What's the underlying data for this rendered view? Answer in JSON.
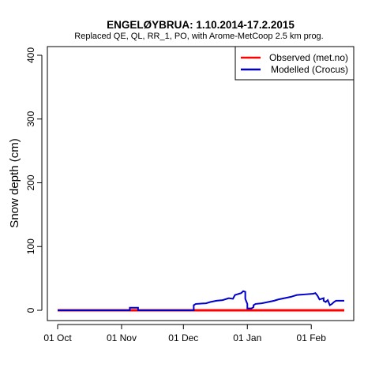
{
  "chart_data": {
    "type": "line",
    "title": "ENGELØYBRUA: 1.10.2014-17.2.2015",
    "subtitle": "Replaced QE, QL, RR_1, PO,  with Arome-MetCoop 2.5 km prog.",
    "ylabel": "Snow depth (cm)",
    "xlabel": "",
    "xlim": [
      "2014-10-01",
      "2015-02-17"
    ],
    "ylim": [
      0,
      400
    ],
    "y_ticks": [
      0,
      100,
      200,
      300,
      400
    ],
    "x_ticks": [
      {
        "date": "2014-10-01",
        "label": "01 Oct"
      },
      {
        "date": "2014-11-01",
        "label": "01 Nov"
      },
      {
        "date": "2014-12-01",
        "label": "01 Dec"
      },
      {
        "date": "2015-01-01",
        "label": "01 Jan"
      },
      {
        "date": "2015-02-01",
        "label": "01 Feb"
      }
    ],
    "legend_position": "top-right",
    "series": [
      {
        "name": "Observed (met.no)",
        "color": "#ff0000",
        "points": [
          [
            "2014-10-01",
            0
          ],
          [
            "2015-02-17",
            0
          ]
        ]
      },
      {
        "name": "Modelled (Crocus)",
        "color": "#0000cc",
        "points": [
          [
            "2014-10-01",
            0
          ],
          [
            "2014-11-05",
            0
          ],
          [
            "2014-11-05",
            4
          ],
          [
            "2014-11-09",
            4
          ],
          [
            "2014-11-09",
            0
          ],
          [
            "2014-12-06",
            0
          ],
          [
            "2014-12-06",
            8
          ],
          [
            "2014-12-07",
            10
          ],
          [
            "2014-12-12",
            11
          ],
          [
            "2014-12-14",
            13
          ],
          [
            "2014-12-17",
            15
          ],
          [
            "2014-12-20",
            16
          ],
          [
            "2014-12-23",
            19
          ],
          [
            "2014-12-25",
            18
          ],
          [
            "2014-12-26",
            24
          ],
          [
            "2014-12-27",
            25
          ],
          [
            "2014-12-28",
            26
          ],
          [
            "2014-12-29",
            27
          ],
          [
            "2014-12-30",
            30
          ],
          [
            "2014-12-31",
            29
          ],
          [
            "2014-12-31",
            18
          ],
          [
            "2015-01-01",
            10
          ],
          [
            "2015-01-01",
            3
          ],
          [
            "2015-01-03",
            3
          ],
          [
            "2015-01-04",
            5
          ],
          [
            "2015-01-04",
            8
          ],
          [
            "2015-01-05",
            10
          ],
          [
            "2015-01-08",
            11
          ],
          [
            "2015-01-11",
            13
          ],
          [
            "2015-01-14",
            15
          ],
          [
            "2015-01-16",
            17
          ],
          [
            "2015-01-19",
            19
          ],
          [
            "2015-01-22",
            21
          ],
          [
            "2015-01-25",
            24
          ],
          [
            "2015-01-29",
            25
          ],
          [
            "2015-02-02",
            26
          ],
          [
            "2015-02-03",
            27
          ],
          [
            "2015-02-04",
            23
          ],
          [
            "2015-02-05",
            17
          ],
          [
            "2015-02-06",
            18
          ],
          [
            "2015-02-07",
            19
          ],
          [
            "2015-02-07",
            15
          ],
          [
            "2015-02-08",
            13
          ],
          [
            "2015-02-09",
            16
          ],
          [
            "2015-02-10",
            8
          ],
          [
            "2015-02-11",
            10
          ],
          [
            "2015-02-12",
            13
          ],
          [
            "2015-02-13",
            15
          ],
          [
            "2015-02-17",
            15
          ]
        ]
      }
    ]
  }
}
